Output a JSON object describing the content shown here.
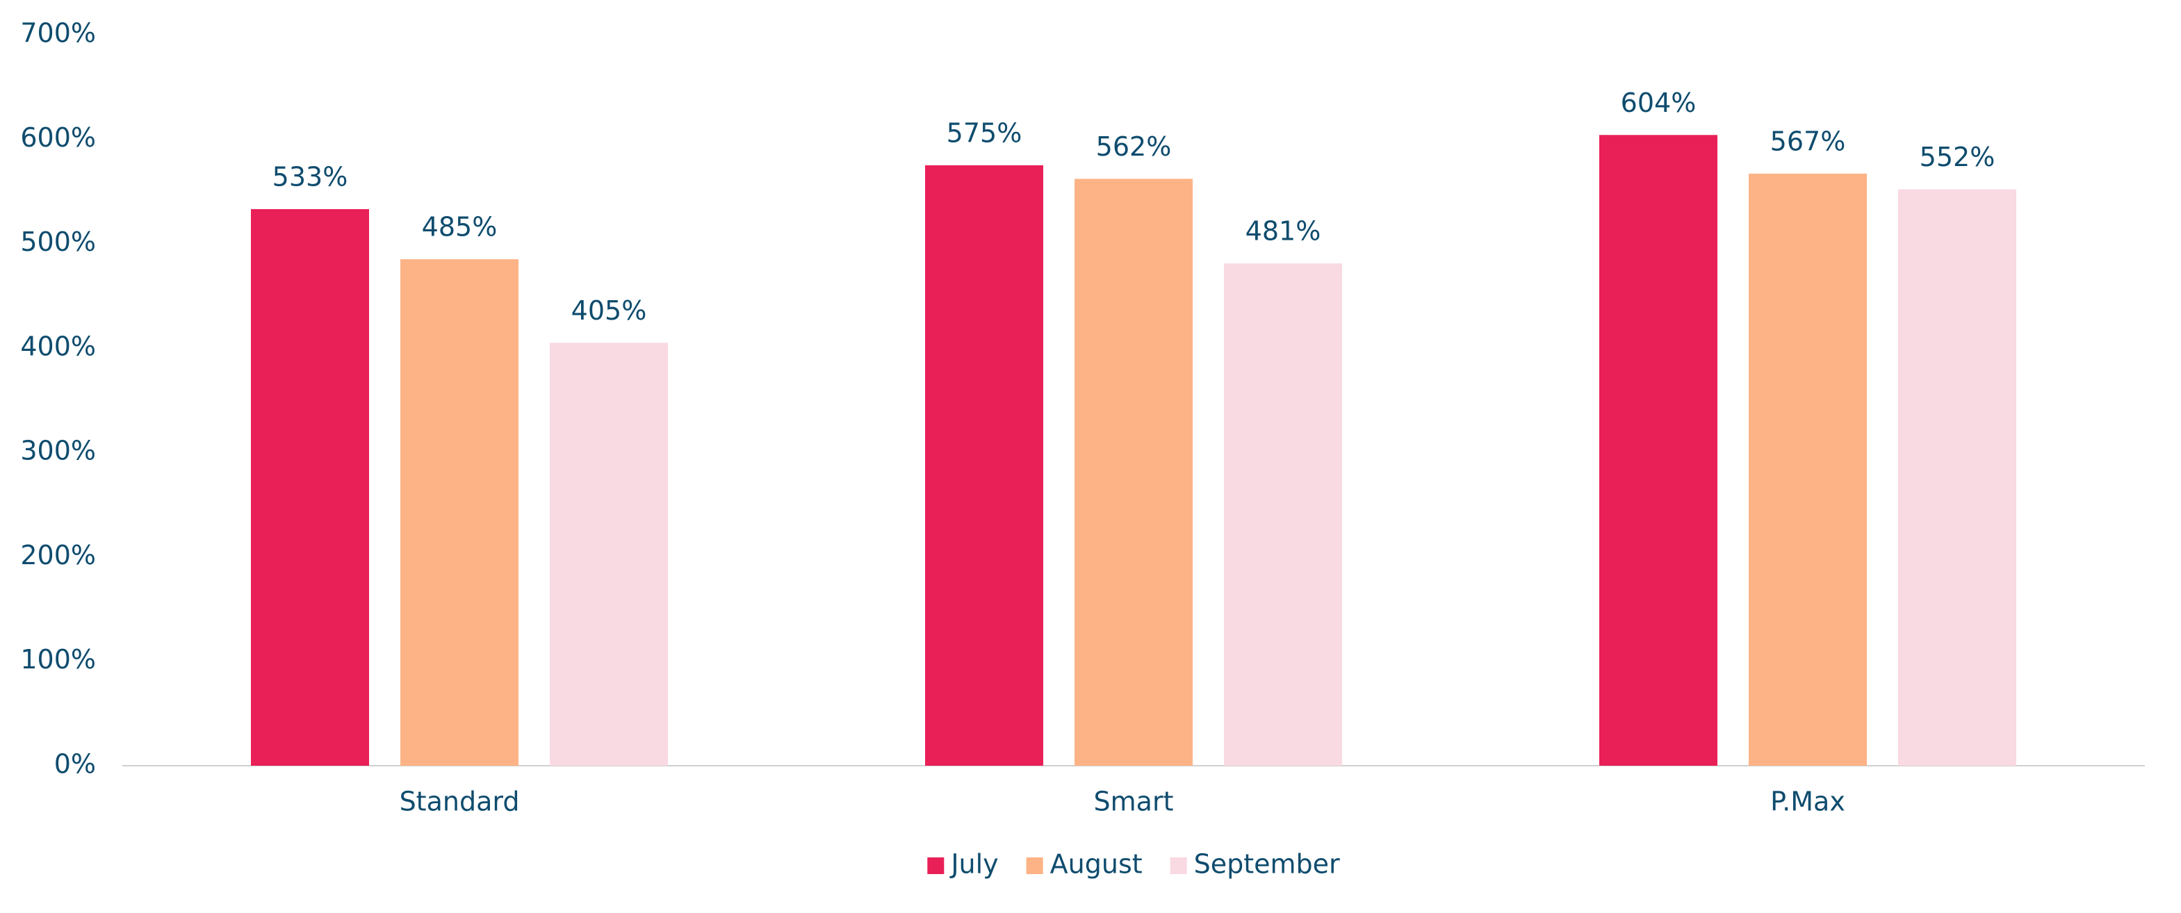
{
  "chart_data": {
    "type": "bar",
    "categories": [
      "Standard",
      "Smart",
      "P.Max"
    ],
    "series": [
      {
        "name": "July",
        "color": "#e91f57",
        "values": [
          533,
          575,
          604
        ],
        "value_labels": [
          "533%",
          "575%",
          "604%"
        ]
      },
      {
        "name": "August",
        "color": "#fdb385",
        "values": [
          485,
          562,
          567
        ],
        "value_labels": [
          "485%",
          "562%",
          "567%"
        ]
      },
      {
        "name": "September",
        "color": "#f9d9e2",
        "values": [
          405,
          481,
          552
        ],
        "value_labels": [
          "405%",
          "481%",
          "552%"
        ]
      }
    ],
    "ylim": [
      0,
      700
    ],
    "yticks": [
      {
        "value": 0,
        "label": "0%"
      },
      {
        "value": 100,
        "label": "100%"
      },
      {
        "value": 200,
        "label": "200%"
      },
      {
        "value": 300,
        "label": "300%"
      },
      {
        "value": 400,
        "label": "400%"
      },
      {
        "value": 500,
        "label": "500%"
      },
      {
        "value": 600,
        "label": "600%"
      },
      {
        "value": 700,
        "label": "700%"
      }
    ],
    "grid": false,
    "legend": "bottom"
  }
}
